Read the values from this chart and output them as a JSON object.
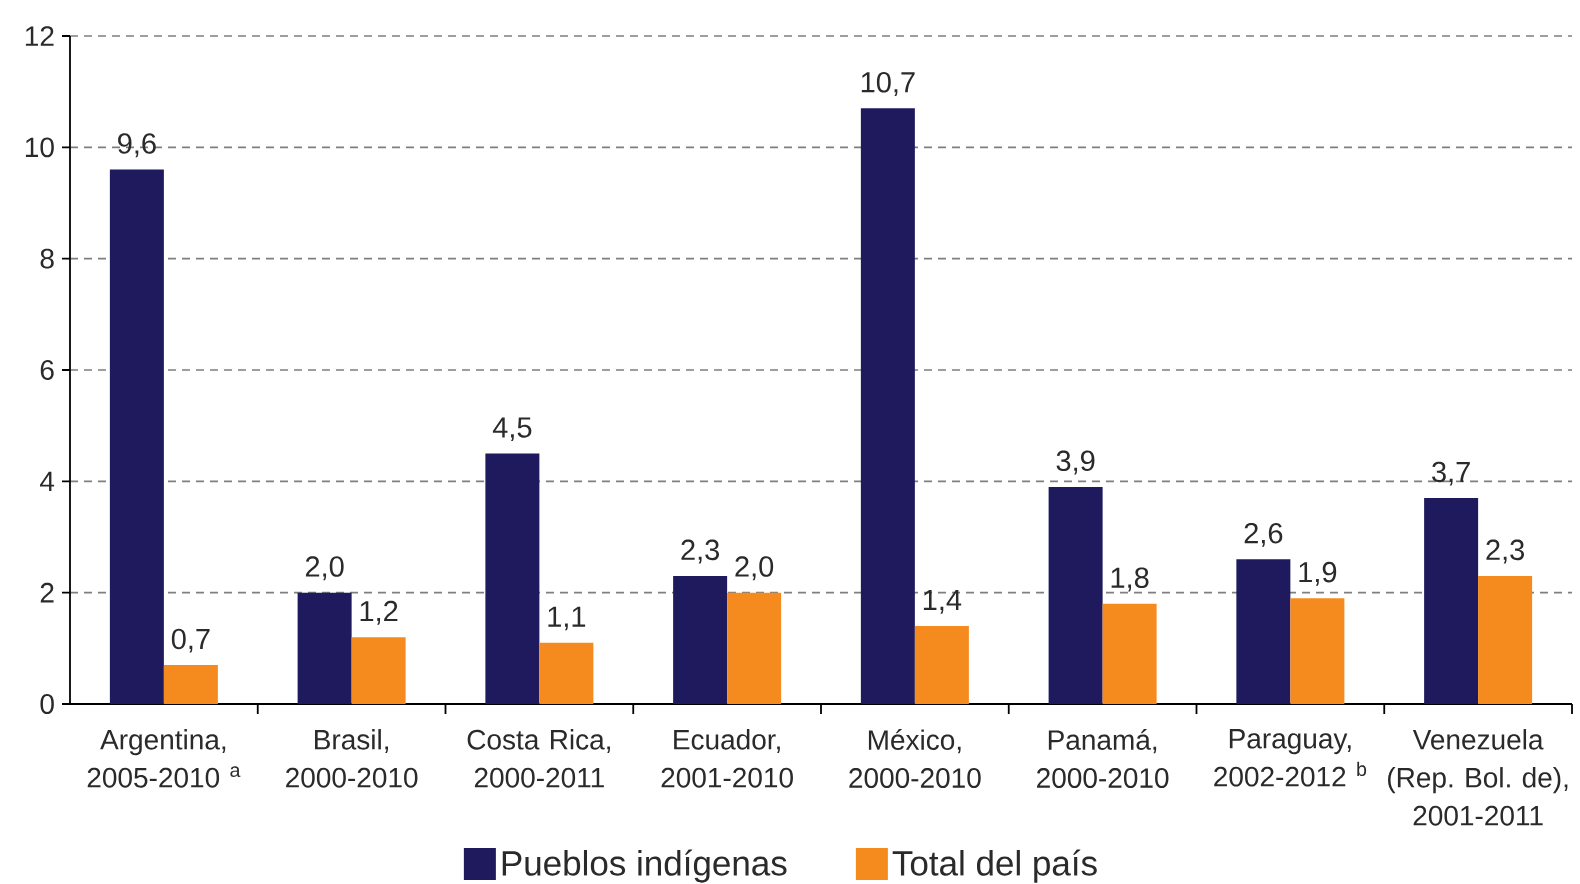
{
  "chart_data": {
    "type": "bar",
    "categories": [
      "Argentina, 2005-2010 $^{a}$",
      "Brasil, 2000-2010",
      "Costa Rica, 2000-2011",
      "Ecuador, 2001-2010",
      "México, 2000-2010",
      "Panamá, 2000-2010",
      "Paraguay, 2002-2012 $^{b}$",
      "Venezuela (Rep. Bol. de), 2001-2011"
    ],
    "series": [
      {
        "name": "Pueblos indígenas",
        "color": "#1f1a5e",
        "values": [
          9.6,
          2.0,
          4.5,
          2.3,
          10.7,
          3.9,
          2.6,
          3.7
        ],
        "value_labels": [
          "9,6",
          "2,0",
          "4,5",
          "2,3",
          "10,7",
          "3,9",
          "2,6",
          "3,7"
        ]
      },
      {
        "name": "Total del país",
        "color": "#f58a1f",
        "values": [
          0.7,
          1.2,
          1.1,
          2.0,
          1.4,
          1.8,
          1.9,
          2.3
        ],
        "value_labels": [
          "0,7",
          "1,2",
          "1,1",
          "2,0",
          "1,4",
          "1,8",
          "1,9",
          "2,3"
        ]
      }
    ],
    "ylim": [
      0,
      12
    ],
    "yticks": [
      0,
      2,
      4,
      6,
      8,
      10,
      12
    ],
    "grid": "y",
    "legend": "bottom"
  }
}
